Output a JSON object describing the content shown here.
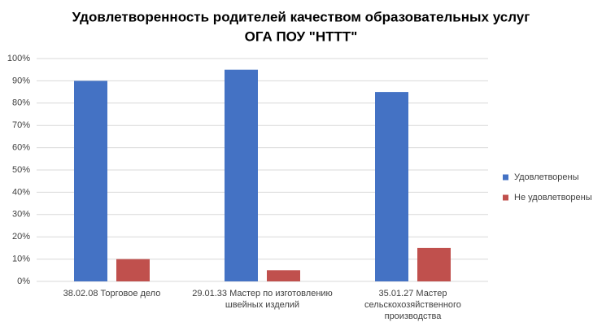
{
  "chart_data": {
    "type": "bar",
    "title": [
      "Удовлетворенность родителей качеством образовательных услуг",
      "ОГА ПОУ \"НТТТ\""
    ],
    "categories": [
      "38.02.08 Торговое дело",
      "29.01.33 Мастер по изготовлению швейных изделий",
      "35.01.27 Мастер сельскохозяйственного производства"
    ],
    "series": [
      {
        "name": "Удовлетворены",
        "color": "#4472c4",
        "values": [
          90,
          95,
          85
        ]
      },
      {
        "name": "Не удовлетворены",
        "color": "#c0504d",
        "values": [
          10,
          5,
          15
        ]
      }
    ],
    "ylim": [
      0,
      100
    ],
    "yticks": [
      {
        "value": 0,
        "label": "0%"
      },
      {
        "value": 10,
        "label": "10%"
      },
      {
        "value": 20,
        "label": "20%"
      },
      {
        "value": 30,
        "label": "30%"
      },
      {
        "value": 40,
        "label": "40%"
      },
      {
        "value": 50,
        "label": "50%"
      },
      {
        "value": 60,
        "label": "60%"
      },
      {
        "value": 70,
        "label": "70%"
      },
      {
        "value": 80,
        "label": "80%"
      },
      {
        "value": 90,
        "label": "90%"
      },
      {
        "value": 100,
        "label": "100%"
      }
    ],
    "grid": true,
    "legend": "right"
  }
}
